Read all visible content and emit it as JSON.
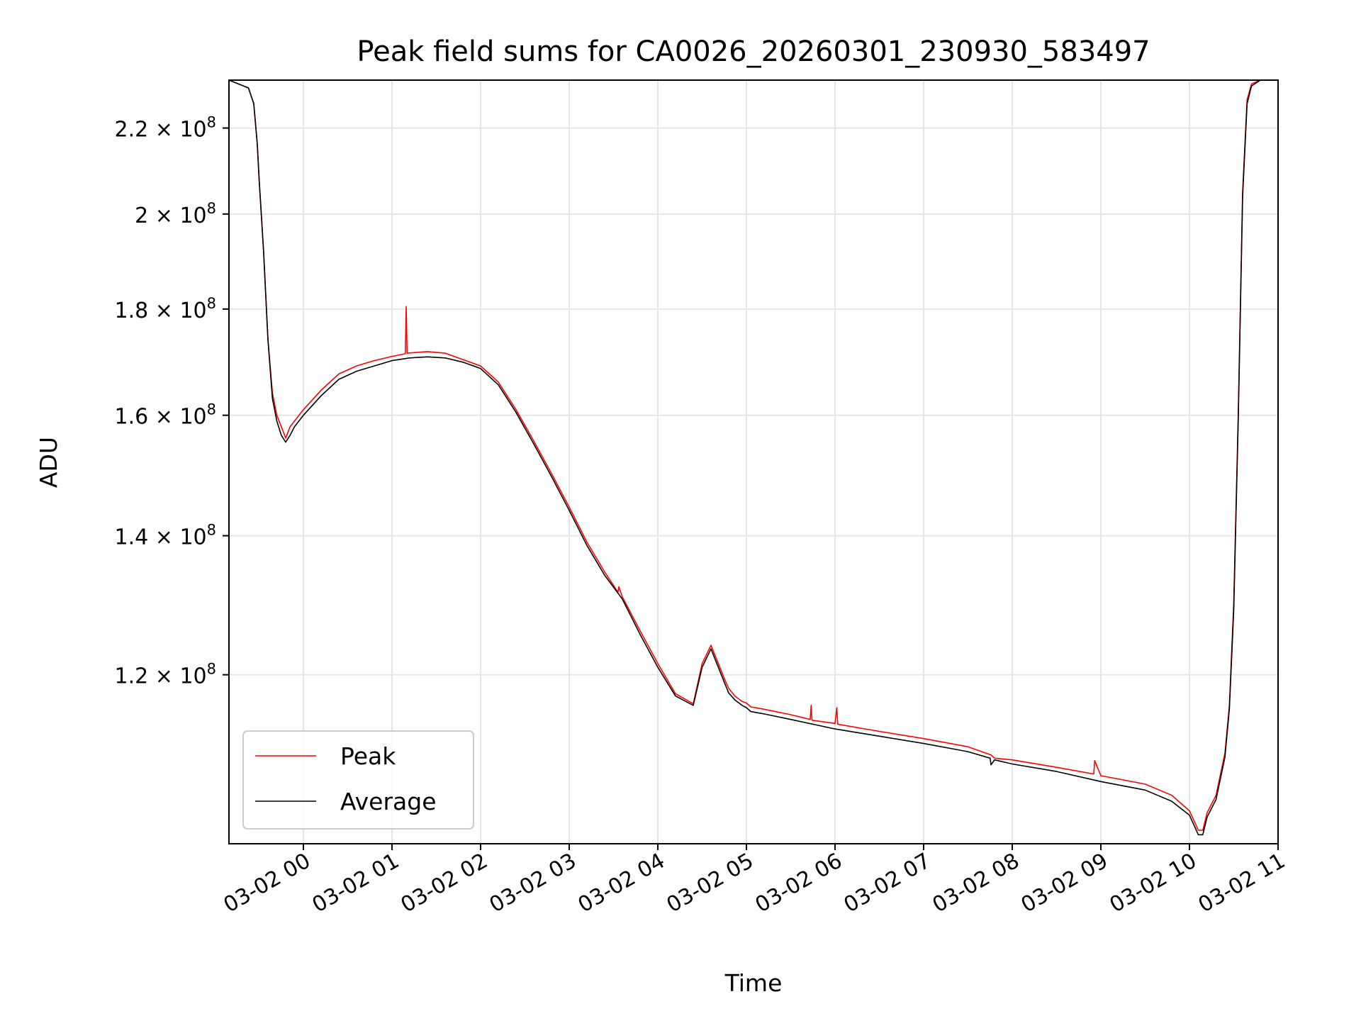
{
  "chart_data": {
    "type": "line",
    "title": "Peak field sums for CA0026_20260301_230930_583497",
    "xlabel": "Time",
    "ylabel": "ADU",
    "yscale": "log",
    "grid": true,
    "legend_position": "lower-left",
    "x_unit": "hours since 03-02 00:00",
    "xlim": [
      -0.84,
      11.0
    ],
    "ylim": [
      99500000.0,
      232000000.0
    ],
    "x_ticks": [
      {
        "value": 0,
        "label": "03-02 00"
      },
      {
        "value": 1,
        "label": "03-02 01"
      },
      {
        "value": 2,
        "label": "03-02 02"
      },
      {
        "value": 3,
        "label": "03-02 03"
      },
      {
        "value": 4,
        "label": "03-02 04"
      },
      {
        "value": 5,
        "label": "03-02 05"
      },
      {
        "value": 6,
        "label": "03-02 06"
      },
      {
        "value": 7,
        "label": "03-02 07"
      },
      {
        "value": 8,
        "label": "03-02 08"
      },
      {
        "value": 9,
        "label": "03-02 09"
      },
      {
        "value": 10,
        "label": "03-02 10"
      },
      {
        "value": 11,
        "label": "03-02 11"
      }
    ],
    "y_ticks": [
      {
        "value": 120000000.0,
        "mantissa": "1.2",
        "base": "10",
        "exp": "8"
      },
      {
        "value": 140000000.0,
        "mantissa": "1.4",
        "base": "10",
        "exp": "8"
      },
      {
        "value": 160000000.0,
        "mantissa": "1.6",
        "base": "10",
        "exp": "8"
      },
      {
        "value": 180000000.0,
        "mantissa": "1.8",
        "base": "10",
        "exp": "8"
      },
      {
        "value": 200000000.0,
        "mantissa": "2",
        "base": "10",
        "exp": "8"
      },
      {
        "value": 220000000.0,
        "mantissa": "2.2",
        "base": "10",
        "exp": "8"
      }
    ],
    "series": [
      {
        "name": "Peak",
        "color": "#ff0000",
        "x": [
          -0.84,
          -0.62,
          -0.56,
          -0.52,
          -0.5,
          -0.45,
          -0.4,
          -0.35,
          -0.3,
          -0.25,
          -0.2,
          -0.15,
          -0.1,
          0.0,
          0.2,
          0.4,
          0.6,
          0.8,
          1.0,
          1.15,
          1.16,
          1.17,
          1.4,
          1.6,
          1.8,
          2.0,
          2.2,
          2.4,
          2.6,
          2.8,
          3.0,
          3.2,
          3.4,
          3.55,
          3.56,
          3.6,
          3.8,
          4.0,
          4.2,
          4.4,
          4.5,
          4.6,
          4.7,
          4.75,
          4.8,
          4.87,
          4.95,
          5.0,
          5.05,
          5.1,
          5.2,
          5.5,
          5.72,
          5.73,
          5.74,
          6.0,
          6.02,
          6.03,
          6.5,
          7.0,
          7.5,
          7.76,
          7.8,
          8.0,
          8.5,
          8.92,
          8.93,
          9.0,
          9.5,
          9.8,
          10.0,
          10.1,
          10.15,
          10.2,
          10.3,
          10.4,
          10.45,
          10.5,
          10.55,
          10.6,
          10.65,
          10.7,
          10.8,
          10.9,
          11.0
        ],
        "y": [
          232000000.0,
          230000000.0,
          226000000.0,
          216000000.0,
          208000000.0,
          192000000.0,
          174000000.0,
          164000000.0,
          160000000.0,
          158000000.0,
          156000000.0,
          158000000.0,
          159000000.0,
          161000000.0,
          164500000.0,
          167500000.0,
          169000000.0,
          170000000.0,
          170800000.0,
          171300000.0,
          180500000.0,
          171400000.0,
          171700000.0,
          171400000.0,
          170200000.0,
          169000000.0,
          166000000.0,
          161000000.0,
          155500000.0,
          150000000.0,
          144500000.0,
          139000000.0,
          134500000.0,
          131500000.0,
          132300000.0,
          130800000.0,
          126000000.0,
          121500000.0,
          117500000.0,
          116200000.0,
          121500000.0,
          124000000.0,
          121000000.0,
          119500000.0,
          118200000.0,
          117200000.0,
          116500000.0,
          116300000.0,
          115800000.0,
          115700000.0,
          115500000.0,
          114800000.0,
          114200000.0,
          116000000.0,
          114100000.0,
          113700000.0,
          115700000.0,
          113600000.0,
          112700000.0,
          111800000.0,
          110800000.0,
          109800000.0,
          109400000.0,
          109200000.0,
          108300000.0,
          107500000.0,
          109100000.0,
          107300000.0,
          106300000.0,
          105000000.0,
          103200000.0,
          101000000.0,
          101000000.0,
          103000000.0,
          105000000.0,
          110000000.0,
          116000000.0,
          130000000.0,
          160000000.0,
          205000000.0,
          227000000.0,
          231000000.0,
          232000000.0,
          232000000.0,
          232000000.0
        ]
      },
      {
        "name": "Average",
        "color": "#000000",
        "x": [
          -0.84,
          -0.62,
          -0.56,
          -0.52,
          -0.5,
          -0.45,
          -0.4,
          -0.35,
          -0.3,
          -0.25,
          -0.2,
          -0.15,
          -0.1,
          0.0,
          0.2,
          0.4,
          0.6,
          0.8,
          1.0,
          1.2,
          1.4,
          1.6,
          1.8,
          2.0,
          2.2,
          2.4,
          2.6,
          2.8,
          3.0,
          3.2,
          3.4,
          3.6,
          3.8,
          4.0,
          4.2,
          4.4,
          4.5,
          4.6,
          4.7,
          4.75,
          4.8,
          4.87,
          4.95,
          5.0,
          5.05,
          5.1,
          5.2,
          5.5,
          6.0,
          6.5,
          7.0,
          7.5,
          7.75,
          7.76,
          7.8,
          8.0,
          8.5,
          9.0,
          9.5,
          9.8,
          10.0,
          10.1,
          10.15,
          10.2,
          10.3,
          10.4,
          10.45,
          10.5,
          10.55,
          10.6,
          10.65,
          10.7,
          10.8,
          10.9,
          11.0
        ],
        "y": [
          232000000.0,
          230000000.0,
          226000000.0,
          216000000.0,
          208000000.0,
          192000000.0,
          174000000.0,
          163000000.0,
          159000000.0,
          156500000.0,
          155300000.0,
          156500000.0,
          158000000.0,
          160000000.0,
          163500000.0,
          166500000.0,
          168000000.0,
          169000000.0,
          170000000.0,
          170500000.0,
          170700000.0,
          170500000.0,
          169700000.0,
          168500000.0,
          165500000.0,
          160500000.0,
          155000000.0,
          149500000.0,
          144000000.0,
          138500000.0,
          134000000.0,
          130500000.0,
          125500000.0,
          121000000.0,
          117200000.0,
          116000000.0,
          121000000.0,
          123500000.0,
          120500000.0,
          119000000.0,
          117600000.0,
          116700000.0,
          116000000.0,
          115700000.0,
          115200000.0,
          115100000.0,
          114900000.0,
          114200000.0,
          113000000.0,
          112100000.0,
          111200000.0,
          110200000.0,
          109400000.0,
          108600000.0,
          109200000.0,
          108700000.0,
          107800000.0,
          106600000.0,
          105600000.0,
          104300000.0,
          102700000.0,
          100500000.0,
          100500000.0,
          102500000.0,
          104500000.0,
          109500000.0,
          115500000.0,
          129000000.0,
          159000000.0,
          204000000.0,
          226000000.0,
          230500000.0,
          232000000.0,
          232000000.0,
          232000000.0
        ]
      }
    ]
  }
}
